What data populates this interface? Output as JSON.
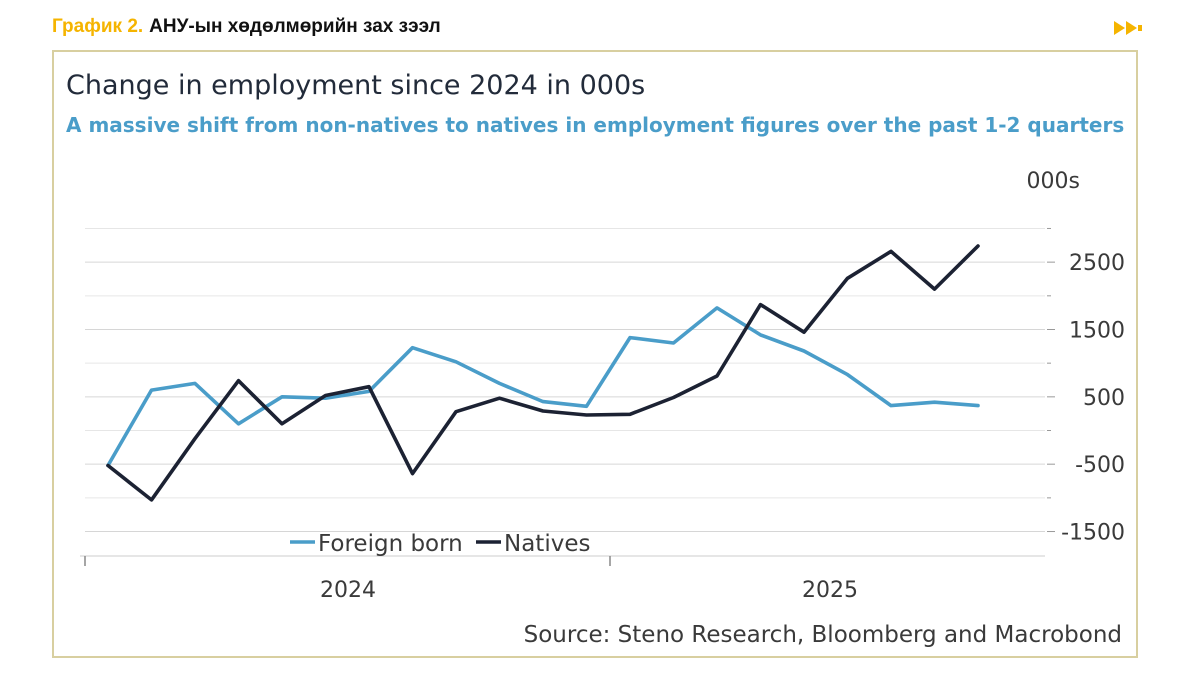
{
  "header": {
    "label": "График 2.",
    "title": "АНУ-ын хөдөлмөрийн зах зээл",
    "accent": "#f5b400",
    "icon": "double-arrow-icon"
  },
  "source": "Source: Steno Research, Bloomberg and Macrobond",
  "chart_data": {
    "type": "line",
    "title": "Change in employment since 2024 in 000s",
    "subtitle": "A massive shift from non-natives to natives in employment figures over the past 1-2 quarters",
    "ylabel": "000s",
    "xlabel": "",
    "ylim": [
      -1700,
      3200
    ],
    "yticks": [
      -1500,
      -500,
      500,
      1500,
      2500
    ],
    "ytick_labels": [
      "-1500",
      "-500",
      "500",
      "1500",
      "2500"
    ],
    "x_period_labels": [
      "2024",
      "2025"
    ],
    "legend_position": "bottom-left",
    "grid": true,
    "series": [
      {
        "name": "Foreign born",
        "color": "#4a9dc9",
        "values": [
          -520,
          600,
          700,
          100,
          500,
          480,
          580,
          1230,
          1020,
          700,
          430,
          360,
          1380,
          1300,
          1820,
          1420,
          1180,
          830,
          370,
          420,
          370
        ]
      },
      {
        "name": "Natives",
        "color": "#1c2233",
        "values": [
          -520,
          -1030,
          -120,
          740,
          100,
          520,
          650,
          -640,
          280,
          480,
          290,
          230,
          240,
          490,
          810,
          1870,
          1460,
          2260,
          2660,
          2100,
          2740
        ]
      }
    ]
  }
}
